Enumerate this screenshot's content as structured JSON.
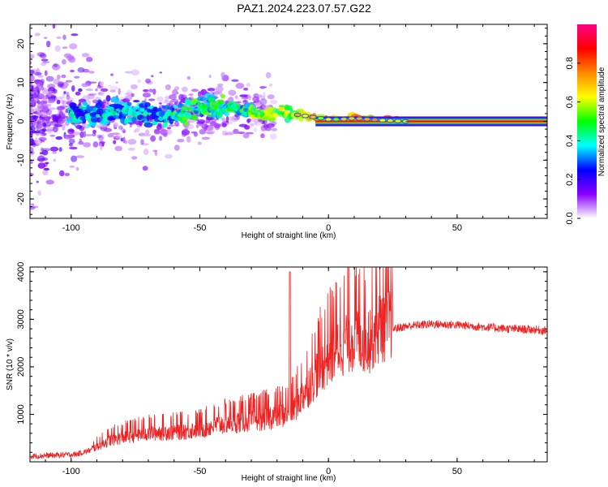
{
  "title": "PAZ1.2024.223.07.57.G22",
  "chart_data": [
    {
      "type": "heatmap",
      "xlabel": "Height of straight line (km)",
      "ylabel": "Frequency (Hz)",
      "xlim": [
        -116,
        85
      ],
      "ylim": [
        -25,
        25
      ],
      "xticks": [
        -100,
        -50,
        0,
        50
      ],
      "yticks": [
        -20,
        -10,
        0,
        10,
        20
      ],
      "colorbar": {
        "label": "Normalized spectral amplitude",
        "range": [
          0.0,
          1.0
        ],
        "ticks": [
          "0.0",
          "0.2",
          "0.4",
          "0.6",
          "0.8"
        ],
        "tick_values": [
          0.0,
          0.2,
          0.4,
          0.6,
          0.8
        ],
        "colormap": [
          "#ffffff",
          "#8800ff",
          "#0000ff",
          "#00ffff",
          "#00ff00",
          "#ffff00",
          "#ff8800",
          "#ff0000",
          "#ff0088"
        ]
      },
      "ridge_track": [
        {
          "x": -100,
          "y": 2
        },
        {
          "x": -80,
          "y": 2.5
        },
        {
          "x": -60,
          "y": 1.5
        },
        {
          "x": -45,
          "y": 4
        },
        {
          "x": -35,
          "y": 3
        },
        {
          "x": -25,
          "y": 2
        },
        {
          "x": -15,
          "y": 2
        },
        {
          "x": -10,
          "y": 1.5
        },
        {
          "x": -5,
          "y": 1
        },
        {
          "x": 0,
          "y": 0.5
        },
        {
          "x": 5,
          "y": 0.5
        },
        {
          "x": 10,
          "y": 0.8
        },
        {
          "x": 20,
          "y": 0.3
        },
        {
          "x": 30,
          "y": 0
        },
        {
          "x": 85,
          "y": 0
        }
      ]
    },
    {
      "type": "line",
      "xlabel": "Height of straight line (km)",
      "ylabel": "SNR (10 * v/v)",
      "xlim": [
        -116,
        85
      ],
      "ylim": [
        0,
        4100
      ],
      "xticks": [
        -100,
        -50,
        0,
        50
      ],
      "yticks": [
        1000,
        2000,
        3000,
        4000
      ],
      "color": "#ee2222",
      "series": [
        {
          "name": "",
          "x": [
            -116,
            -105,
            -98,
            -92,
            -85,
            -78,
            -70,
            -62,
            -55,
            -48,
            -40,
            -32,
            -25,
            -20,
            -16,
            -15,
            -14,
            -10,
            -5,
            0,
            5,
            10,
            15,
            20,
            25,
            30,
            35,
            40,
            50,
            60,
            70,
            80,
            85
          ],
          "y": [
            120,
            140,
            160,
            250,
            420,
            500,
            560,
            580,
            600,
            650,
            750,
            800,
            850,
            900,
            950,
            4000,
            1000,
            1300,
            1700,
            2050,
            2300,
            2450,
            2350,
            2650,
            2800,
            2850,
            2880,
            2900,
            2880,
            2840,
            2800,
            2780,
            2760
          ]
        }
      ]
    }
  ]
}
